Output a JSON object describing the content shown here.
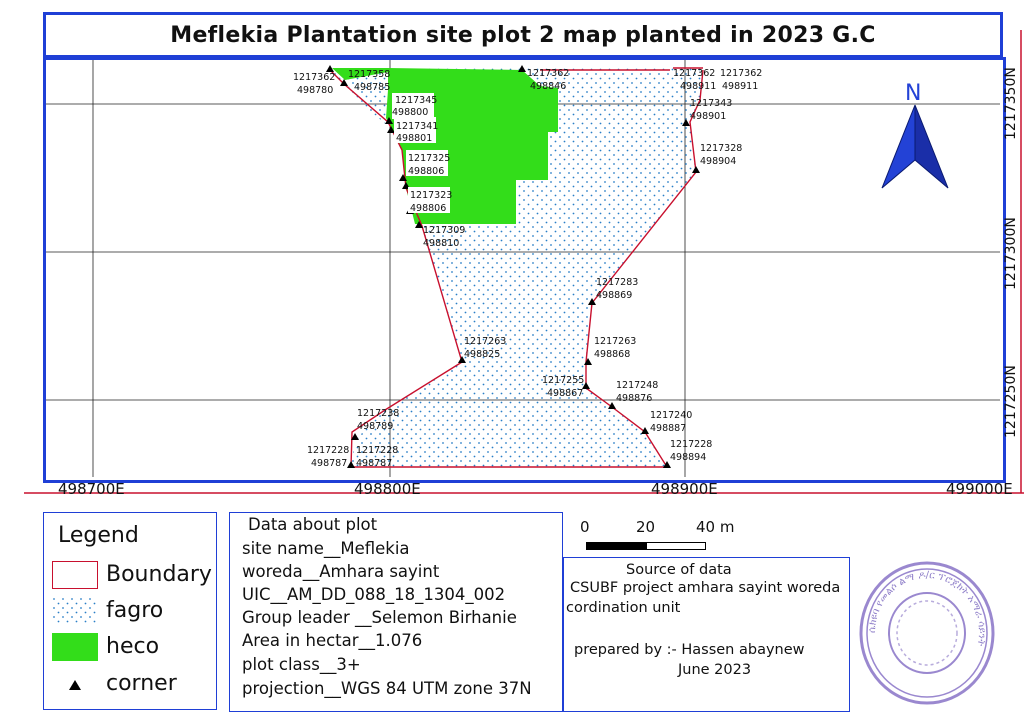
{
  "title": "Meflekia Plantation site plot 2 map planted in 2023 G.C",
  "map": {
    "x_ticks": [
      "498700E",
      "498800E",
      "498900E",
      "499000E"
    ],
    "y_ticks": [
      "1217350N",
      "1217300N",
      "1217250N"
    ],
    "north_label": "N",
    "corners": [
      {
        "n": "1217362",
        "e": "498780"
      },
      {
        "n": "1217358",
        "e": "498785"
      },
      {
        "n": "1217345",
        "e": "498800"
      },
      {
        "n": "1217341",
        "e": "498801"
      },
      {
        "n": "1217325",
        "e": "498806"
      },
      {
        "n": "1217323",
        "e": "498806"
      },
      {
        "n": "1217309",
        "e": "498810"
      },
      {
        "n": "1217362",
        "e": "498846"
      },
      {
        "n": "1217362",
        "e": "498911"
      },
      {
        "n": "1217362",
        "e": "498911"
      },
      {
        "n": "1217343",
        "e": "498901"
      },
      {
        "n": "1217328",
        "e": "498904"
      },
      {
        "n": "1217283",
        "e": "498869"
      },
      {
        "n": "1217263",
        "e": "498868"
      },
      {
        "n": "1217263",
        "e": "498825"
      },
      {
        "n": "1217255",
        "e": "498867"
      },
      {
        "n": "1217248",
        "e": "498876"
      },
      {
        "n": "1217240",
        "e": "498887"
      },
      {
        "n": "1217228",
        "e": "498894"
      },
      {
        "n": "1217238",
        "e": "498789"
      },
      {
        "n": "1217228",
        "e": "498787"
      },
      {
        "n": "1217228",
        "e": "498787"
      }
    ],
    "colors": {
      "boundary": "#c8102e",
      "heco": "#33dd1a",
      "fagro_dot": "#2a7fc7",
      "frame": "#1f3fd6",
      "north_arrow": "#2342d6"
    }
  },
  "legend": {
    "title": "Legend",
    "items": [
      {
        "label": "Boundary",
        "swatch": "boundary"
      },
      {
        "label": "fagro",
        "swatch": "fagro"
      },
      {
        "label": "heco",
        "swatch": "heco"
      },
      {
        "label": "corner",
        "swatch": "corner"
      }
    ]
  },
  "plot_info": {
    "heading": "Data about plot",
    "lines": [
      "site name__Meflekia",
      "woreda__Amhara sayint",
      "UIC__AM_DD_088_18_1304_002",
      "Group leader __Selemon Birhanie",
      "Area in hectar__1.076",
      "plot class__3+",
      "projection__WGS 84 UTM zone 37N"
    ]
  },
  "scale": {
    "labels": [
      "0",
      "20",
      "40 m"
    ]
  },
  "source": {
    "heading": "Source of data",
    "line1": "CSUBF project amhara sayint woreda",
    "line2": "cordination unit",
    "prepared": "prepared by :- Hassen abaynew",
    "date": "June 2023"
  },
  "stamp": {
    "text": "ሴክዩባ የመልሶ ልማ ዶ/ር ፕሮጀክት አማራ ሳይንት"
  }
}
